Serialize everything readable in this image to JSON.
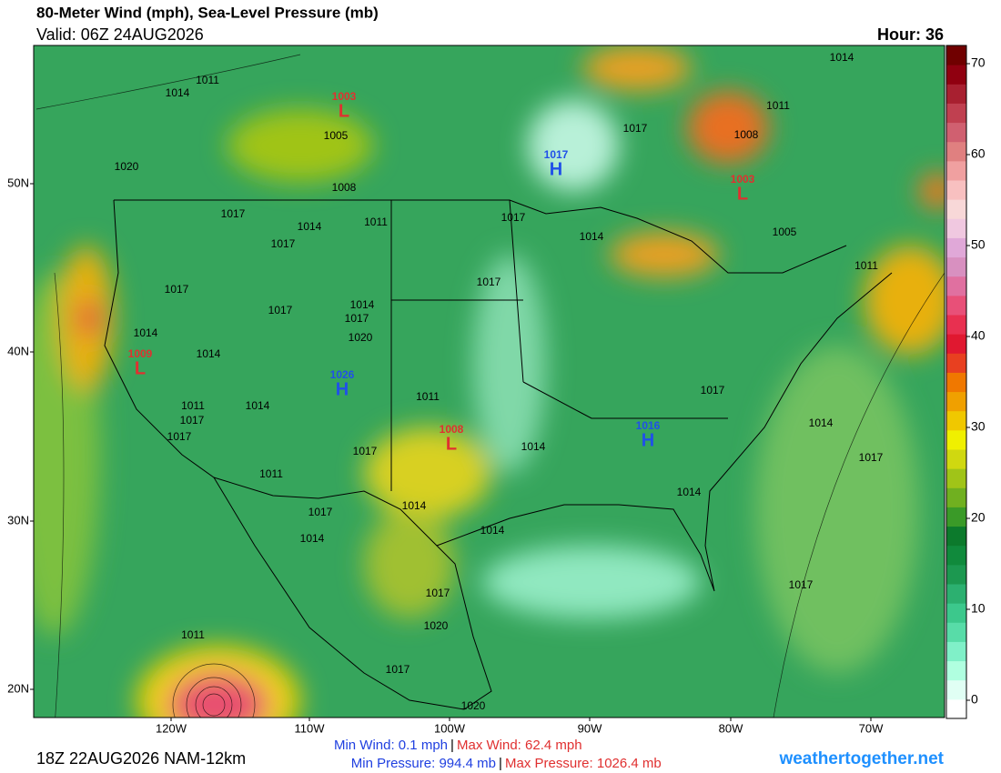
{
  "header": {
    "title": "80-Meter Wind (mph), Sea-Level Pressure (mb)",
    "valid": "Valid: 06Z 24AUG2026",
    "hour": "Hour: 36"
  },
  "map": {
    "lat_labels": [
      "50N",
      "40N",
      "30N",
      "20N"
    ],
    "lon_labels": [
      "120W",
      "110W",
      "100W",
      "90W",
      "80W",
      "70W"
    ],
    "isobar_labels": [
      1011,
      1014,
      1020,
      1017,
      1017,
      1014,
      1011,
      1005,
      1008,
      1017,
      1017,
      1014,
      1014,
      1014,
      1017,
      1020,
      1011,
      1017,
      1017,
      1014,
      1011,
      1017,
      1011,
      1014,
      1017,
      1014,
      1014,
      1017,
      1020,
      1017,
      1020,
      1011,
      1017,
      1017,
      1014,
      1017,
      1014,
      1014,
      1017,
      1017,
      1017,
      1011,
      1008,
      1014,
      1005,
      1011,
      1014
    ],
    "centers": [
      {
        "letter": "L",
        "value": 1003
      },
      {
        "letter": "H",
        "value": 1017
      },
      {
        "letter": "L",
        "value": 1003
      },
      {
        "letter": "L",
        "value": 1009
      },
      {
        "letter": "H",
        "value": 1026
      },
      {
        "letter": "L",
        "value": 1008
      },
      {
        "letter": "H",
        "value": 1016
      }
    ]
  },
  "colorbar": {
    "ticks": [
      0,
      10,
      20,
      30,
      40,
      50,
      60,
      70
    ]
  },
  "footer": {
    "run": "18Z 22AUG2026 NAM-12km",
    "min_wind": "Min Wind:  0.1 mph",
    "max_wind": "Max Wind: 62.4 mph",
    "min_pressure": "Min Pressure: 994.4 mb",
    "max_pressure": "Max Pressure: 1026.4 mb",
    "separator": "|",
    "site": "weathertogether.net"
  }
}
